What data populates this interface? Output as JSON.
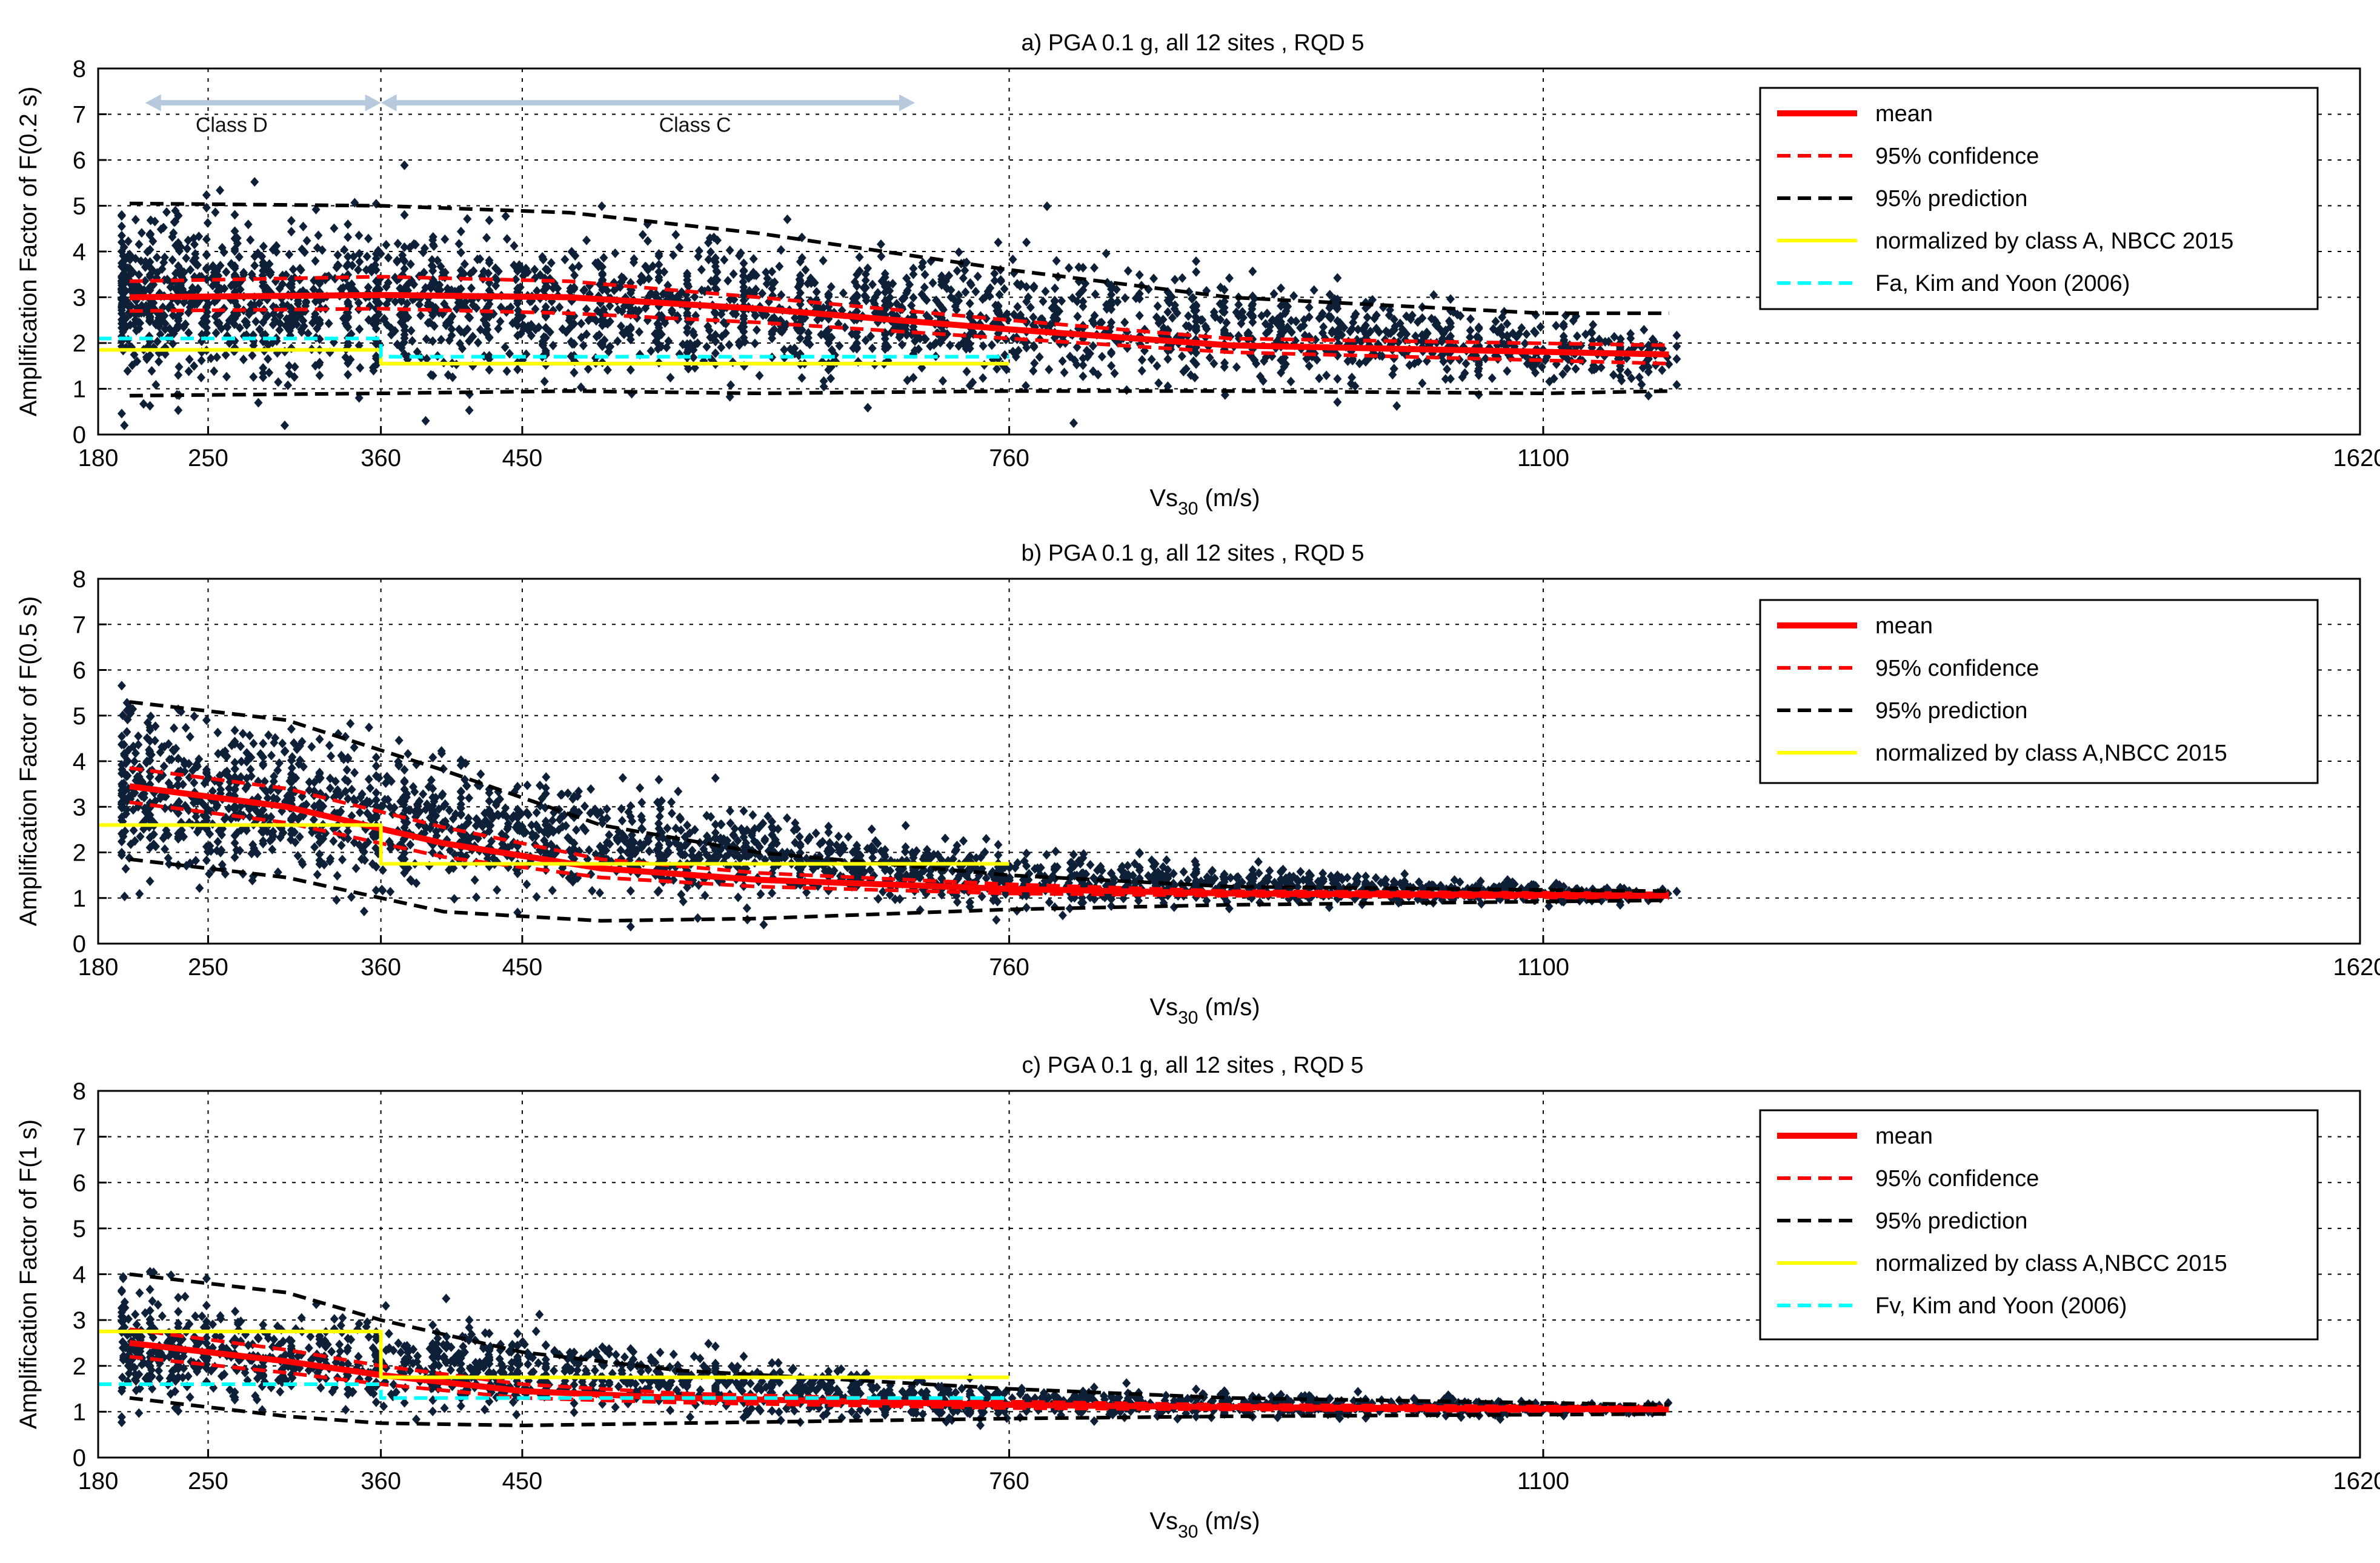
{
  "chart_data": [
    {
      "type": "scatter",
      "title": "a) PGA 0.1 g, all 12 sites , RQD 5",
      "xlabel": "Vs30 (m/s)",
      "ylabel": "Amplification Factor of F(0.2 s)",
      "xlim": [
        180,
        1620
      ],
      "ylim": [
        0,
        8
      ],
      "xticks": [
        180,
        250,
        360,
        450,
        760,
        1100,
        1620
      ],
      "yticks": [
        0,
        1,
        2,
        3,
        4,
        5,
        6,
        7,
        8
      ],
      "grid": true,
      "legend_position": "top-right",
      "annotations": [
        {
          "text": "Class D",
          "x": 265,
          "y": 6.8,
          "arrow_from": 210,
          "arrow_to": 360
        },
        {
          "text": "Class C",
          "x": 560,
          "y": 6.8,
          "arrow_from": 360,
          "arrow_to": 700
        }
      ],
      "scatter": {
        "name": "",
        "x_groups": [
          180,
          760,
          1180
        ],
        "y_center_at": [
          3.0,
          2.6,
          1.7
        ],
        "spread_at": [
          1.5,
          1.2,
          0.55
        ],
        "color": "#0d2038"
      },
      "series": [
        {
          "name": "mean",
          "style": "solid",
          "color": "#ff0000",
          "x": [
            200,
            360,
            480,
            600,
            760,
            900,
            1180
          ],
          "y": [
            3.0,
            3.05,
            3.0,
            2.75,
            2.3,
            1.95,
            1.75
          ]
        },
        {
          "name": "95% confidence",
          "style": "dashed",
          "color": "#ff0000",
          "upper": {
            "x": [
              200,
              360,
              480,
              600,
              760,
              900,
              1180
            ],
            "y": [
              3.35,
              3.45,
              3.35,
              3.0,
              2.5,
              2.1,
              1.95
            ]
          },
          "lower": {
            "x": [
              200,
              360,
              480,
              600,
              760,
              900,
              1180
            ],
            "y": [
              2.7,
              2.75,
              2.65,
              2.45,
              2.1,
              1.8,
              1.55
            ]
          }
        },
        {
          "name": "95% prediction",
          "style": "dashed",
          "color": "#000000",
          "upper": {
            "x": [
              200,
              360,
              480,
              600,
              760,
              900,
              1100,
              1180
            ],
            "y": [
              5.05,
              5.0,
              4.85,
              4.4,
              3.6,
              3.0,
              2.65,
              2.65
            ]
          },
          "lower": {
            "x": [
              200,
              360,
              480,
              600,
              760,
              900,
              1100,
              1180
            ],
            "y": [
              0.85,
              0.9,
              0.95,
              0.9,
              0.95,
              0.95,
              0.9,
              0.95
            ]
          }
        },
        {
          "name": "normalized by class A, NBCC 2015",
          "style": "solid",
          "color": "#ffff00",
          "x": [
            180,
            360,
            360,
            760
          ],
          "y": [
            1.85,
            1.85,
            1.55,
            1.55
          ]
        },
        {
          "name": "Fa, Kim and Yoon (2006)",
          "style": "dashed",
          "color": "#00ffff",
          "x": [
            180,
            360,
            360,
            760
          ],
          "y": [
            2.1,
            2.1,
            1.7,
            1.7
          ]
        }
      ]
    },
    {
      "type": "scatter",
      "title": "b) PGA 0.1 g, all 12 sites , RQD 5",
      "xlabel": "Vs30 (m/s)",
      "ylabel": "Amplification Factor of F(0.5 s)",
      "xlim": [
        180,
        1620
      ],
      "ylim": [
        0,
        8
      ],
      "xticks": [
        180,
        250,
        360,
        450,
        760,
        1100,
        1620
      ],
      "yticks": [
        0,
        1,
        2,
        3,
        4,
        5,
        6,
        7,
        8
      ],
      "grid": true,
      "legend_position": "top-right",
      "scatter": {
        "name": "",
        "x_groups": [
          180,
          760,
          1180
        ],
        "y_center_at": [
          3.5,
          1.4,
          1.05
        ],
        "spread_at": [
          1.6,
          0.5,
          0.12
        ],
        "color": "#0d2038"
      },
      "series": [
        {
          "name": "mean",
          "style": "solid",
          "color": "#ff0000",
          "x": [
            200,
            300,
            400,
            500,
            600,
            760,
            900,
            1180
          ],
          "y": [
            3.45,
            3.0,
            2.2,
            1.65,
            1.4,
            1.2,
            1.1,
            1.05
          ]
        },
        {
          "name": "95% confidence",
          "style": "dashed",
          "color": "#ff0000",
          "upper": {
            "x": [
              200,
              300,
              400,
              500,
              600,
              760,
              900,
              1180
            ],
            "y": [
              3.85,
              3.4,
              2.55,
              1.85,
              1.55,
              1.3,
              1.15,
              1.1
            ]
          },
          "lower": {
            "x": [
              200,
              300,
              400,
              500,
              600,
              760,
              900,
              1180
            ],
            "y": [
              3.1,
              2.65,
              1.9,
              1.45,
              1.25,
              1.1,
              1.05,
              1.0
            ]
          }
        },
        {
          "name": "95% prediction",
          "style": "dashed",
          "color": "#000000",
          "upper": {
            "x": [
              200,
              300,
              400,
              500,
              600,
              760,
              900,
              1180
            ],
            "y": [
              5.3,
              4.9,
              3.8,
              2.6,
              2.0,
              1.5,
              1.25,
              1.15
            ]
          },
          "lower": {
            "x": [
              200,
              300,
              400,
              500,
              600,
              760,
              900,
              1180
            ],
            "y": [
              1.85,
              1.45,
              0.7,
              0.5,
              0.55,
              0.75,
              0.85,
              0.95
            ]
          }
        },
        {
          "name": "normalized by class A,NBCC 2015",
          "style": "solid",
          "color": "#ffff00",
          "x": [
            180,
            360,
            360,
            760
          ],
          "y": [
            2.6,
            2.6,
            1.75,
            1.75
          ]
        }
      ]
    },
    {
      "type": "scatter",
      "title": "c) PGA 0.1 g, all 12 sites , RQD 5",
      "xlabel": "Vs30 (m/s)",
      "ylabel": "Amplification Factor of F(1 s)",
      "xlim": [
        180,
        1620
      ],
      "ylim": [
        0,
        8
      ],
      "xticks": [
        180,
        250,
        360,
        450,
        760,
        1100,
        1620
      ],
      "yticks": [
        0,
        1,
        2,
        3,
        4,
        5,
        6,
        7,
        8
      ],
      "grid": true,
      "legend_position": "top-right",
      "scatter": {
        "name": "",
        "x_groups": [
          180,
          760,
          1180
        ],
        "y_center_at": [
          2.5,
          1.2,
          1.05
        ],
        "spread_at": [
          1.1,
          0.3,
          0.1
        ],
        "color": "#0d2038"
      },
      "series": [
        {
          "name": "mean",
          "style": "solid",
          "color": "#ff0000",
          "x": [
            200,
            300,
            360,
            450,
            550,
            760,
            900,
            1180
          ],
          "y": [
            2.5,
            2.1,
            1.8,
            1.45,
            1.3,
            1.15,
            1.1,
            1.05
          ]
        },
        {
          "name": "95% confidence",
          "style": "dashed",
          "color": "#ff0000",
          "upper": {
            "x": [
              200,
              300,
              360,
              450,
              550,
              760,
              900,
              1180
            ],
            "y": [
              2.8,
              2.35,
              2.0,
              1.6,
              1.4,
              1.22,
              1.15,
              1.1
            ]
          },
          "lower": {
            "x": [
              200,
              300,
              360,
              450,
              550,
              760,
              900,
              1180
            ],
            "y": [
              2.2,
              1.85,
              1.6,
              1.3,
              1.2,
              1.08,
              1.05,
              1.0
            ]
          }
        },
        {
          "name": "95% prediction",
          "style": "dashed",
          "color": "#000000",
          "upper": {
            "x": [
              200,
              300,
              360,
              450,
              550,
              760,
              900,
              1180
            ],
            "y": [
              4.0,
              3.6,
              3.0,
              2.3,
              1.9,
              1.5,
              1.3,
              1.15
            ]
          },
          "lower": {
            "x": [
              200,
              300,
              360,
              450,
              550,
              760,
              900,
              1180
            ],
            "y": [
              1.3,
              0.9,
              0.75,
              0.7,
              0.75,
              0.85,
              0.9,
              0.95
            ]
          }
        },
        {
          "name": "normalized by class A,NBCC 2015",
          "style": "solid",
          "color": "#ffff00",
          "x": [
            180,
            360,
            360,
            760
          ],
          "y": [
            2.75,
            2.75,
            1.75,
            1.75
          ]
        },
        {
          "name": "Fv, Kim and Yoon (2006)",
          "style": "dashed",
          "color": "#00ffff",
          "x": [
            180,
            360,
            360,
            760
          ],
          "y": [
            1.6,
            1.6,
            1.3,
            1.3
          ]
        }
      ]
    }
  ]
}
